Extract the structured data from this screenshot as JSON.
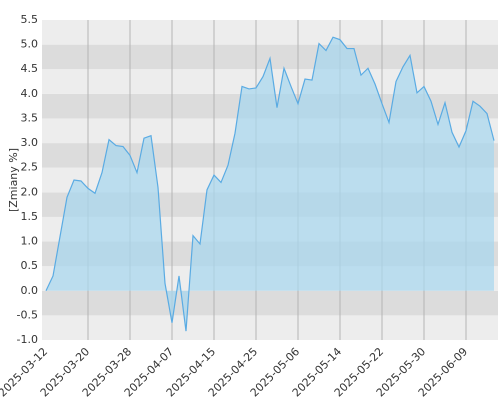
{
  "chart_data": {
    "type": "area",
    "y_label": "[Zmiany %]",
    "color": "#5aabe3",
    "fill": "#a9d7ee",
    "categories": [
      "2025-03-12",
      null,
      null,
      null,
      null,
      null,
      "2025-03-20",
      null,
      null,
      null,
      null,
      null,
      "2025-03-28",
      null,
      null,
      null,
      null,
      null,
      "2025-04-07",
      null,
      null,
      null,
      null,
      null,
      "2025-04-15",
      null,
      null,
      null,
      null,
      null,
      "2025-04-25",
      null,
      null,
      null,
      null,
      null,
      "2025-05-06",
      null,
      null,
      null,
      null,
      null,
      "2025-05-14",
      null,
      null,
      null,
      null,
      null,
      "2025-05-22",
      null,
      null,
      null,
      null,
      null,
      "2025-05-30",
      null,
      null,
      null,
      null,
      null,
      "2025-06-09",
      null,
      null,
      null,
      null
    ],
    "values": [
      0.0,
      0.3,
      1.1,
      1.9,
      2.25,
      2.23,
      2.08,
      1.98,
      2.4,
      3.07,
      2.95,
      2.93,
      2.75,
      2.4,
      3.1,
      3.15,
      2.1,
      0.15,
      -0.65,
      0.3,
      -0.82,
      1.12,
      0.95,
      2.05,
      2.35,
      2.2,
      2.55,
      3.2,
      4.15,
      4.1,
      4.12,
      4.35,
      4.72,
      3.72,
      4.52,
      4.15,
      3.8,
      4.3,
      4.28,
      5.02,
      4.88,
      5.15,
      5.1,
      4.92,
      4.92,
      4.38,
      4.52,
      4.2,
      3.8,
      3.42,
      4.25,
      4.55,
      4.78,
      4.02,
      4.15,
      3.85,
      3.38,
      3.82,
      3.22,
      2.92,
      3.25,
      3.85,
      3.75,
      3.6,
      3.05
    ],
    "ylim": [
      -1.0,
      5.5
    ],
    "yticks": [
      {
        "value": -1,
        "label": "-1.0"
      },
      -0.5,
      {
        "value": 0,
        "label": "0.0"
      },
      0.5,
      {
        "value": 1,
        "label": "1.0"
      },
      1.5,
      {
        "value": 2,
        "label": "2.0"
      },
      2.5,
      {
        "value": 3,
        "label": "3.0"
      },
      3.5,
      {
        "value": 4,
        "label": "4.0"
      },
      4.5,
      {
        "value": 5,
        "label": "5.0"
      },
      5.5
    ],
    "grid": true
  }
}
